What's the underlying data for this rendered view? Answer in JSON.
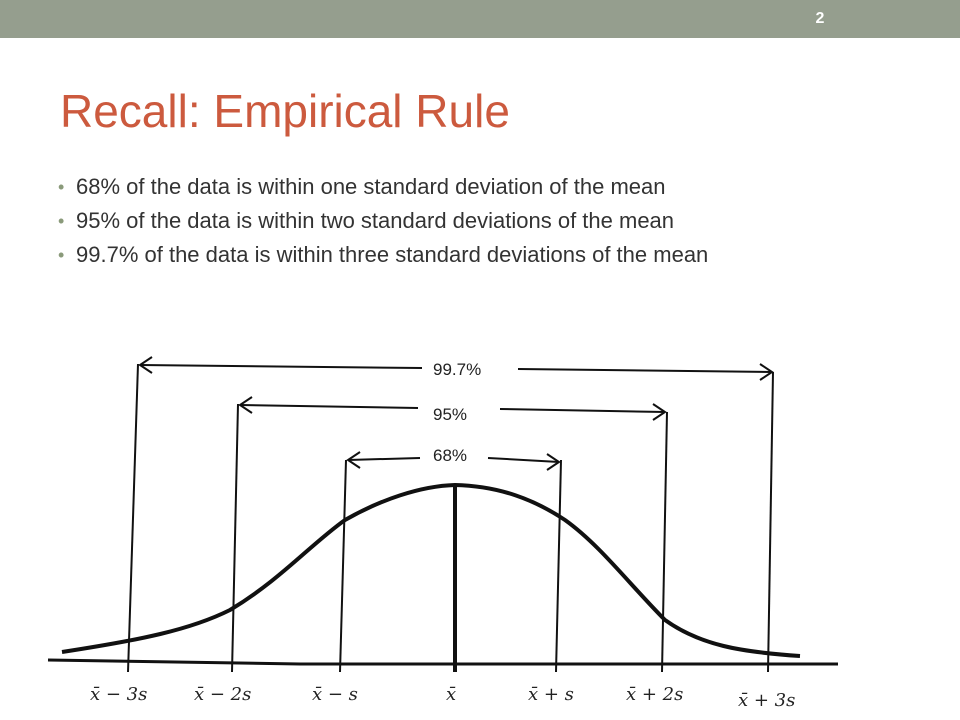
{
  "slide": {
    "number": "2"
  },
  "title": "Recall:  Empirical Rule",
  "bullets": [
    "68% of the data is within one standard deviation of the mean",
    "95% of the data is within two standard deviations of the mean",
    "99.7% of the data is within three standard deviations of the mean"
  ],
  "diagram": {
    "intervals": [
      "99.7%",
      "95%",
      "68%"
    ],
    "axis_labels": [
      "x̄ − 3s",
      "x̄ − 2s",
      "x̄ − s",
      "x̄",
      "x̄ + s",
      "x̄ + 2s",
      "x̄ + 3s"
    ]
  }
}
